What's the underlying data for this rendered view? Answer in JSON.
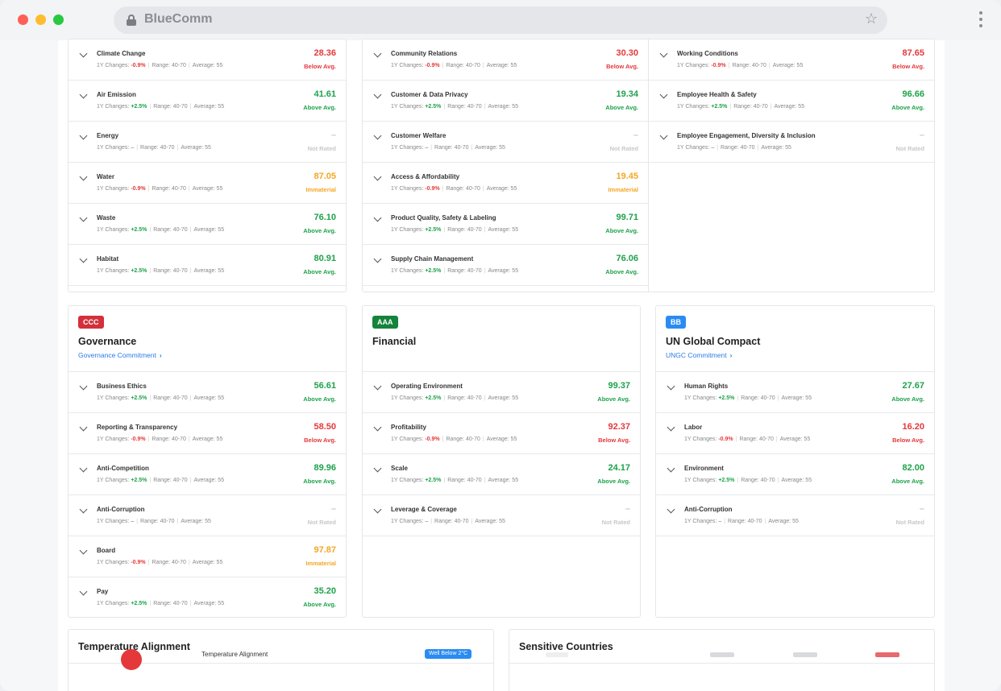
{
  "browser": {
    "url_text": "BlueComm"
  },
  "labels": {
    "changes_prefix": "1Y Changes:",
    "range_prefix": "Range:",
    "average_prefix": "Average:"
  },
  "top_env": {
    "rows": [
      {
        "name": "Climate Change",
        "change": "-0.9%",
        "change_type": "neg",
        "range": "40-70",
        "average": "55",
        "score": "28.36",
        "status": "Below Avg.",
        "tone": "red"
      },
      {
        "name": "Air Emission",
        "change": "+2.5%",
        "change_type": "pos",
        "range": "40-70",
        "average": "55",
        "score": "41.61",
        "status": "Above Avg.",
        "tone": "green"
      },
      {
        "name": "Energy",
        "change": "–",
        "change_type": "nil",
        "range": "40-70",
        "average": "55",
        "score": "–",
        "status": "Not Rated",
        "tone": "grey"
      },
      {
        "name": "Water",
        "change": "-0.9%",
        "change_type": "neg",
        "range": "40-70",
        "average": "55",
        "score": "87.05",
        "status": "Immaterial",
        "tone": "orange"
      },
      {
        "name": "Waste",
        "change": "+2.5%",
        "change_type": "pos",
        "range": "40-70",
        "average": "55",
        "score": "76.10",
        "status": "Above Avg.",
        "tone": "green"
      },
      {
        "name": "Habitat",
        "change": "+2.5%",
        "change_type": "pos",
        "range": "40-70",
        "average": "55",
        "score": "80.91",
        "status": "Above Avg.",
        "tone": "green"
      }
    ]
  },
  "top_social_a": {
    "rows": [
      {
        "name": "Community Relations",
        "change": "-0.9%",
        "change_type": "neg",
        "range": "40-70",
        "average": "55",
        "score": "30.30",
        "status": "Below Avg.",
        "tone": "red"
      },
      {
        "name": "Customer & Data Privacy",
        "change": "+2.5%",
        "change_type": "pos",
        "range": "40-70",
        "average": "55",
        "score": "19.34",
        "status": "Above Avg.",
        "tone": "green"
      },
      {
        "name": "Customer Welfare",
        "change": "–",
        "change_type": "nil",
        "range": "40-70",
        "average": "55",
        "score": "–",
        "status": "Not Rated",
        "tone": "grey"
      },
      {
        "name": "Access & Affordability",
        "change": "-0.9%",
        "change_type": "neg",
        "range": "40-70",
        "average": "55",
        "score": "19.45",
        "status": "Immaterial",
        "tone": "orange"
      },
      {
        "name": "Product Quality, Safety & Labeling",
        "change": "+2.5%",
        "change_type": "pos",
        "range": "40-70",
        "average": "55",
        "score": "99.71",
        "status": "Above Avg.",
        "tone": "green"
      },
      {
        "name": "Supply Chain Management",
        "change": "+2.5%",
        "change_type": "pos",
        "range": "40-70",
        "average": "55",
        "score": "76.06",
        "status": "Above Avg.",
        "tone": "green"
      }
    ]
  },
  "top_social_b": {
    "rows": [
      {
        "name": "Working Conditions",
        "change": "-0.9%",
        "change_type": "neg",
        "range": "40-70",
        "average": "55",
        "score": "87.65",
        "status": "Below Avg.",
        "tone": "red"
      },
      {
        "name": "Employee Health & Safety",
        "change": "+2.5%",
        "change_type": "pos",
        "range": "40-70",
        "average": "55",
        "score": "96.66",
        "status": "Above Avg.",
        "tone": "green"
      },
      {
        "name": "Employee Engagement, Diversity & Inclusion",
        "change": "–",
        "change_type": "nil",
        "range": "40-70",
        "average": "55",
        "score": "–",
        "status": "Not Rated",
        "tone": "grey"
      }
    ]
  },
  "governance": {
    "badge": "CCC",
    "badge_color": "#d3303a",
    "title": "Governance",
    "link": "Governance Commitment",
    "rows": [
      {
        "name": "Business Ethics",
        "change": "+2.5%",
        "change_type": "pos",
        "range": "40-70",
        "average": "55",
        "score": "56.61",
        "status": "Above Avg.",
        "tone": "green"
      },
      {
        "name": "Reporting & Transparency",
        "change": "-0.9%",
        "change_type": "neg",
        "range": "40-70",
        "average": "55",
        "score": "58.50",
        "status": "Below Avg.",
        "tone": "red"
      },
      {
        "name": "Anti-Competition",
        "change": "+2.5%",
        "change_type": "pos",
        "range": "40-70",
        "average": "55",
        "score": "89.96",
        "status": "Above Avg.",
        "tone": "green"
      },
      {
        "name": "Anti-Corruption",
        "change": "–",
        "change_type": "nil",
        "range": "40-70",
        "average": "55",
        "score": "–",
        "status": "Not Rated",
        "tone": "grey"
      },
      {
        "name": "Board",
        "change": "-0.9%",
        "change_type": "neg",
        "range": "40-70",
        "average": "55",
        "score": "97.87",
        "status": "Immaterial",
        "tone": "orange"
      },
      {
        "name": "Pay",
        "change": "+2.5%",
        "change_type": "pos",
        "range": "40-70",
        "average": "55",
        "score": "35.20",
        "status": "Above Avg.",
        "tone": "green"
      }
    ]
  },
  "financial": {
    "badge": "AAA",
    "badge_color": "#14833b",
    "title": "Financial",
    "rows": [
      {
        "name": "Operating Environment",
        "change": "+2.5%",
        "change_type": "pos",
        "range": "40-70",
        "average": "55",
        "score": "99.37",
        "status": "Above Avg.",
        "tone": "green"
      },
      {
        "name": "Profitability",
        "change": "-0.9%",
        "change_type": "neg",
        "range": "40-70",
        "average": "55",
        "score": "92.37",
        "status": "Below Avg.",
        "tone": "red"
      },
      {
        "name": "Scale",
        "change": "+2.5%",
        "change_type": "pos",
        "range": "40-70",
        "average": "55",
        "score": "24.17",
        "status": "Above Avg.",
        "tone": "green"
      },
      {
        "name": "Leverage & Coverage",
        "change": "–",
        "change_type": "nil",
        "range": "40-70",
        "average": "55",
        "score": "–",
        "status": "Not Rated",
        "tone": "grey"
      }
    ]
  },
  "ungc": {
    "badge": "BB",
    "badge_color": "#2a8bf2",
    "title": "UN Global Compact",
    "link": "UNGC Commitment",
    "rows": [
      {
        "name": "Human Rights",
        "change": "+2.5%",
        "change_type": "pos",
        "range": "40-70",
        "average": "55",
        "score": "27.67",
        "status": "Above Avg.",
        "tone": "green"
      },
      {
        "name": "Labor",
        "change": "-0.9%",
        "change_type": "neg",
        "range": "40-70",
        "average": "55",
        "score": "16.20",
        "status": "Below Avg.",
        "tone": "red"
      },
      {
        "name": "Environment",
        "change": "+2.5%",
        "change_type": "pos",
        "range": "40-70",
        "average": "55",
        "score": "82.00",
        "status": "Above Avg.",
        "tone": "green"
      },
      {
        "name": "Anti-Corruption",
        "change": "–",
        "change_type": "nil",
        "range": "40-70",
        "average": "55",
        "score": "–",
        "status": "Not Rated",
        "tone": "grey"
      }
    ]
  },
  "temperature": {
    "title": "Temperature Alignment",
    "row_label": "Temperature Alignment",
    "pill": "Well Below 2°C"
  },
  "sensitive": {
    "title": "Sensitive Countries"
  }
}
